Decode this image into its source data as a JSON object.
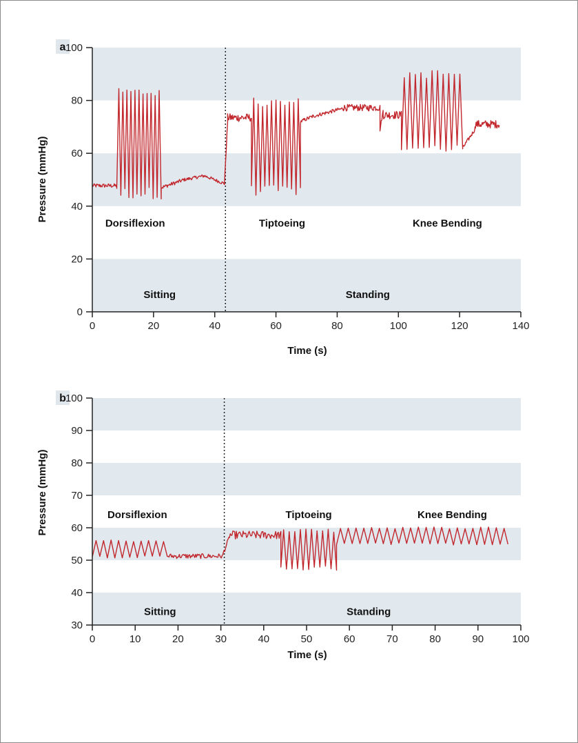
{
  "colors": {
    "band": "#e1e8ee",
    "line": "#c1272d",
    "axis": "#222222",
    "letter_box": "#dfe6ec"
  },
  "chart_data": [
    {
      "type": "line",
      "panel": "a",
      "xlabel": "Time (s)",
      "ylabel": "Pressure (mmHg)",
      "xlim": [
        0,
        140
      ],
      "ylim": [
        0,
        100
      ],
      "xticks": [
        0,
        20,
        40,
        60,
        80,
        100,
        120,
        140
      ],
      "yticks": [
        0,
        20,
        40,
        60,
        80,
        100
      ],
      "bands": [
        [
          0,
          20
        ],
        [
          40,
          60
        ],
        [
          80,
          100
        ]
      ],
      "divider_x": 43.5,
      "annotations": [
        {
          "text": "Dorsiflexion",
          "x": 14,
          "y": 33.5
        },
        {
          "text": "Tiptoeing",
          "x": 62,
          "y": 33.5
        },
        {
          "text": "Knee Bending",
          "x": 116,
          "y": 33.5
        },
        {
          "text": "Sitting",
          "x": 22,
          "y": 6.5
        },
        {
          "text": "Standing",
          "x": 90,
          "y": 6.5
        }
      ],
      "segments": [
        {
          "from": 0,
          "to": 8,
          "kind": "flat",
          "lo": 47,
          "hi": 48.5
        },
        {
          "from": 8,
          "to": 22.5,
          "kind": "osc",
          "cycles": 11,
          "base": 45,
          "peak": 83
        },
        {
          "from": 22.5,
          "to": 30,
          "kind": "ramp",
          "start": 47,
          "end": 50
        },
        {
          "from": 30,
          "to": 43.2,
          "kind": "hump",
          "start": 50,
          "mid": 51.5,
          "end": 48.5
        },
        {
          "from": 43.2,
          "to": 44.2,
          "kind": "ramp",
          "start": 49,
          "end": 72
        },
        {
          "from": 44.2,
          "to": 52,
          "kind": "flat",
          "lo": 72,
          "hi": 75
        },
        {
          "from": 52,
          "to": 68,
          "kind": "osc",
          "cycles": 11,
          "base": 46,
          "peak": 79
        },
        {
          "from": 68,
          "to": 72,
          "kind": "ramp",
          "start": 72,
          "end": 74
        },
        {
          "from": 72,
          "to": 82,
          "kind": "ramp",
          "start": 74,
          "end": 77
        },
        {
          "from": 82,
          "to": 94,
          "kind": "flat",
          "lo": 76,
          "hi": 78.5
        },
        {
          "from": 94,
          "to": 95,
          "kind": "ramp",
          "start": 69,
          "end": 76
        },
        {
          "from": 95,
          "to": 101,
          "kind": "flat",
          "lo": 73,
          "hi": 76
        },
        {
          "from": 101,
          "to": 121,
          "kind": "osc",
          "cycles": 11,
          "base": 62,
          "peak": 90
        },
        {
          "from": 121,
          "to": 125,
          "kind": "ramp",
          "start": 62,
          "end": 69
        },
        {
          "from": 125,
          "to": 133,
          "kind": "flat",
          "lo": 69.5,
          "hi": 72.5
        }
      ]
    },
    {
      "type": "line",
      "panel": "b",
      "xlabel": "Time (s)",
      "ylabel": "Pressure (mmHg)",
      "xlim": [
        0,
        100
      ],
      "ylim": [
        30,
        100
      ],
      "xticks": [
        0,
        10,
        20,
        30,
        40,
        50,
        60,
        70,
        80,
        90,
        100
      ],
      "yticks": [
        30,
        40,
        50,
        60,
        70,
        80,
        90,
        100
      ],
      "bands": [
        [
          30,
          40
        ],
        [
          50,
          60
        ],
        [
          70,
          80
        ],
        [
          90,
          100
        ]
      ],
      "divider_x": 30.8,
      "annotations": [
        {
          "text": "Dorsiflexion",
          "x": 10.5,
          "y": 64
        },
        {
          "text": "Tiptoeing",
          "x": 50.5,
          "y": 64
        },
        {
          "text": "Knee Bending",
          "x": 84,
          "y": 64
        },
        {
          "text": "Sitting",
          "x": 15.8,
          "y": 34.2
        },
        {
          "text": "Standing",
          "x": 64.5,
          "y": 34.2
        }
      ],
      "segments": [
        {
          "from": 0,
          "to": 17.5,
          "kind": "osc",
          "cycles": 10,
          "base": 51,
          "peak": 56
        },
        {
          "from": 17.5,
          "to": 30.5,
          "kind": "flat",
          "lo": 50.5,
          "hi": 52
        },
        {
          "from": 30.5,
          "to": 32,
          "kind": "ramp",
          "start": 52,
          "end": 57
        },
        {
          "from": 32,
          "to": 44,
          "kind": "flat",
          "lo": 56.5,
          "hi": 59
        },
        {
          "from": 44,
          "to": 57,
          "kind": "osc",
          "cycles": 10,
          "base": 47.5,
          "peak": 59
        },
        {
          "from": 57,
          "to": 97,
          "kind": "osc",
          "cycles": 22,
          "base": 55,
          "peak": 60
        }
      ]
    }
  ]
}
